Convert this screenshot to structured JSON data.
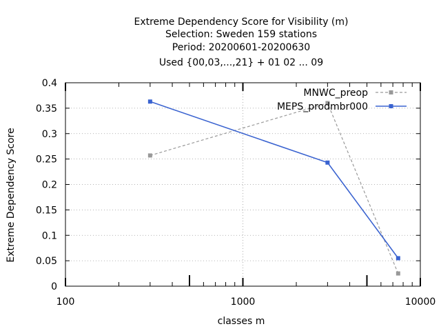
{
  "chart_data": {
    "type": "line",
    "title_lines": [
      "Extreme Dependency Score  for Visibility (m)",
      "Selection: Sweden     159 stations",
      "Period: 20200601-20200630",
      "Used {00,03,...,21} + 01 02 ... 09"
    ],
    "xlabel": "classes m",
    "ylabel": "Extreme Dependency Score",
    "x_scale": "log",
    "xlim": [
      100,
      10000
    ],
    "ylim": [
      0,
      0.4
    ],
    "x_ticks": [
      "100",
      "1000",
      "10000"
    ],
    "y_ticks": [
      "0",
      "0.05",
      "0.1",
      "0.15",
      "0.2",
      "0.25",
      "0.3",
      "0.35",
      "0.4"
    ],
    "grid": true,
    "legend_position": "top-right",
    "series": [
      {
        "name": "MNWC_preop",
        "color": "#999999",
        "dashed": true,
        "x": [
          300,
          3000,
          7500
        ],
        "y": [
          0.257,
          0.36,
          0.025
        ]
      },
      {
        "name": "MEPS_prodmbr000",
        "color": "#3a63d0",
        "dashed": false,
        "x": [
          300,
          3000,
          7500
        ],
        "y": [
          0.363,
          0.243,
          0.055
        ]
      }
    ]
  }
}
